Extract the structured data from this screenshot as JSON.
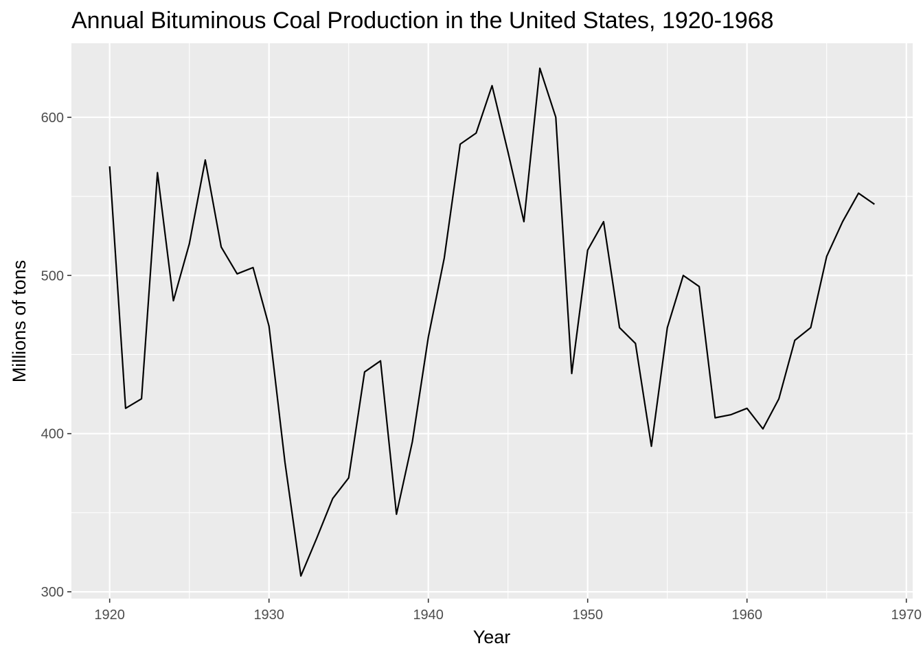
{
  "chart_data": {
    "type": "line",
    "title": "Annual Bituminous Coal Production in the United States, 1920-1968",
    "xlabel": "Year",
    "ylabel": "Millions of tons",
    "xlim": [
      1917.6,
      1970.4
    ],
    "ylim": [
      295.7,
      646.8
    ],
    "x_ticks": [
      1920,
      1930,
      1940,
      1950,
      1960,
      1970
    ],
    "y_ticks": [
      300,
      400,
      500,
      600
    ],
    "x_tick_labels": [
      "1920",
      "1930",
      "1940",
      "1950",
      "1960",
      "1970"
    ],
    "y_tick_labels": [
      "300",
      "400",
      "500",
      "600"
    ],
    "grid": true,
    "legend": "none",
    "colors": {
      "panel": "#ebebeb",
      "grid": "#ffffff",
      "line": "#000000",
      "tick_text": "#4d4d4d"
    },
    "series": [
      {
        "x": [
          1920,
          1921,
          1922,
          1923,
          1924,
          1925,
          1926,
          1927,
          1928,
          1929,
          1930,
          1931,
          1932,
          1933,
          1934,
          1935,
          1936,
          1937,
          1938,
          1939,
          1940,
          1941,
          1942,
          1943,
          1944,
          1945,
          1946,
          1947,
          1948,
          1949,
          1950,
          1951,
          1952,
          1953,
          1954,
          1955,
          1956,
          1957,
          1958,
          1959,
          1960,
          1961,
          1962,
          1963,
          1964,
          1965,
          1966,
          1967,
          1968
        ],
        "values": [
          569,
          416,
          422,
          565,
          484,
          520,
          573,
          518,
          501,
          505,
          468,
          382,
          310,
          334,
          359,
          372,
          439,
          446,
          349,
          395,
          461,
          511,
          583,
          590,
          620,
          578,
          534,
          631,
          600,
          438,
          516,
          534,
          467,
          457,
          392,
          467,
          500,
          493,
          410,
          412,
          416,
          403,
          422,
          459,
          467,
          512,
          534,
          552,
          545
        ]
      }
    ]
  }
}
